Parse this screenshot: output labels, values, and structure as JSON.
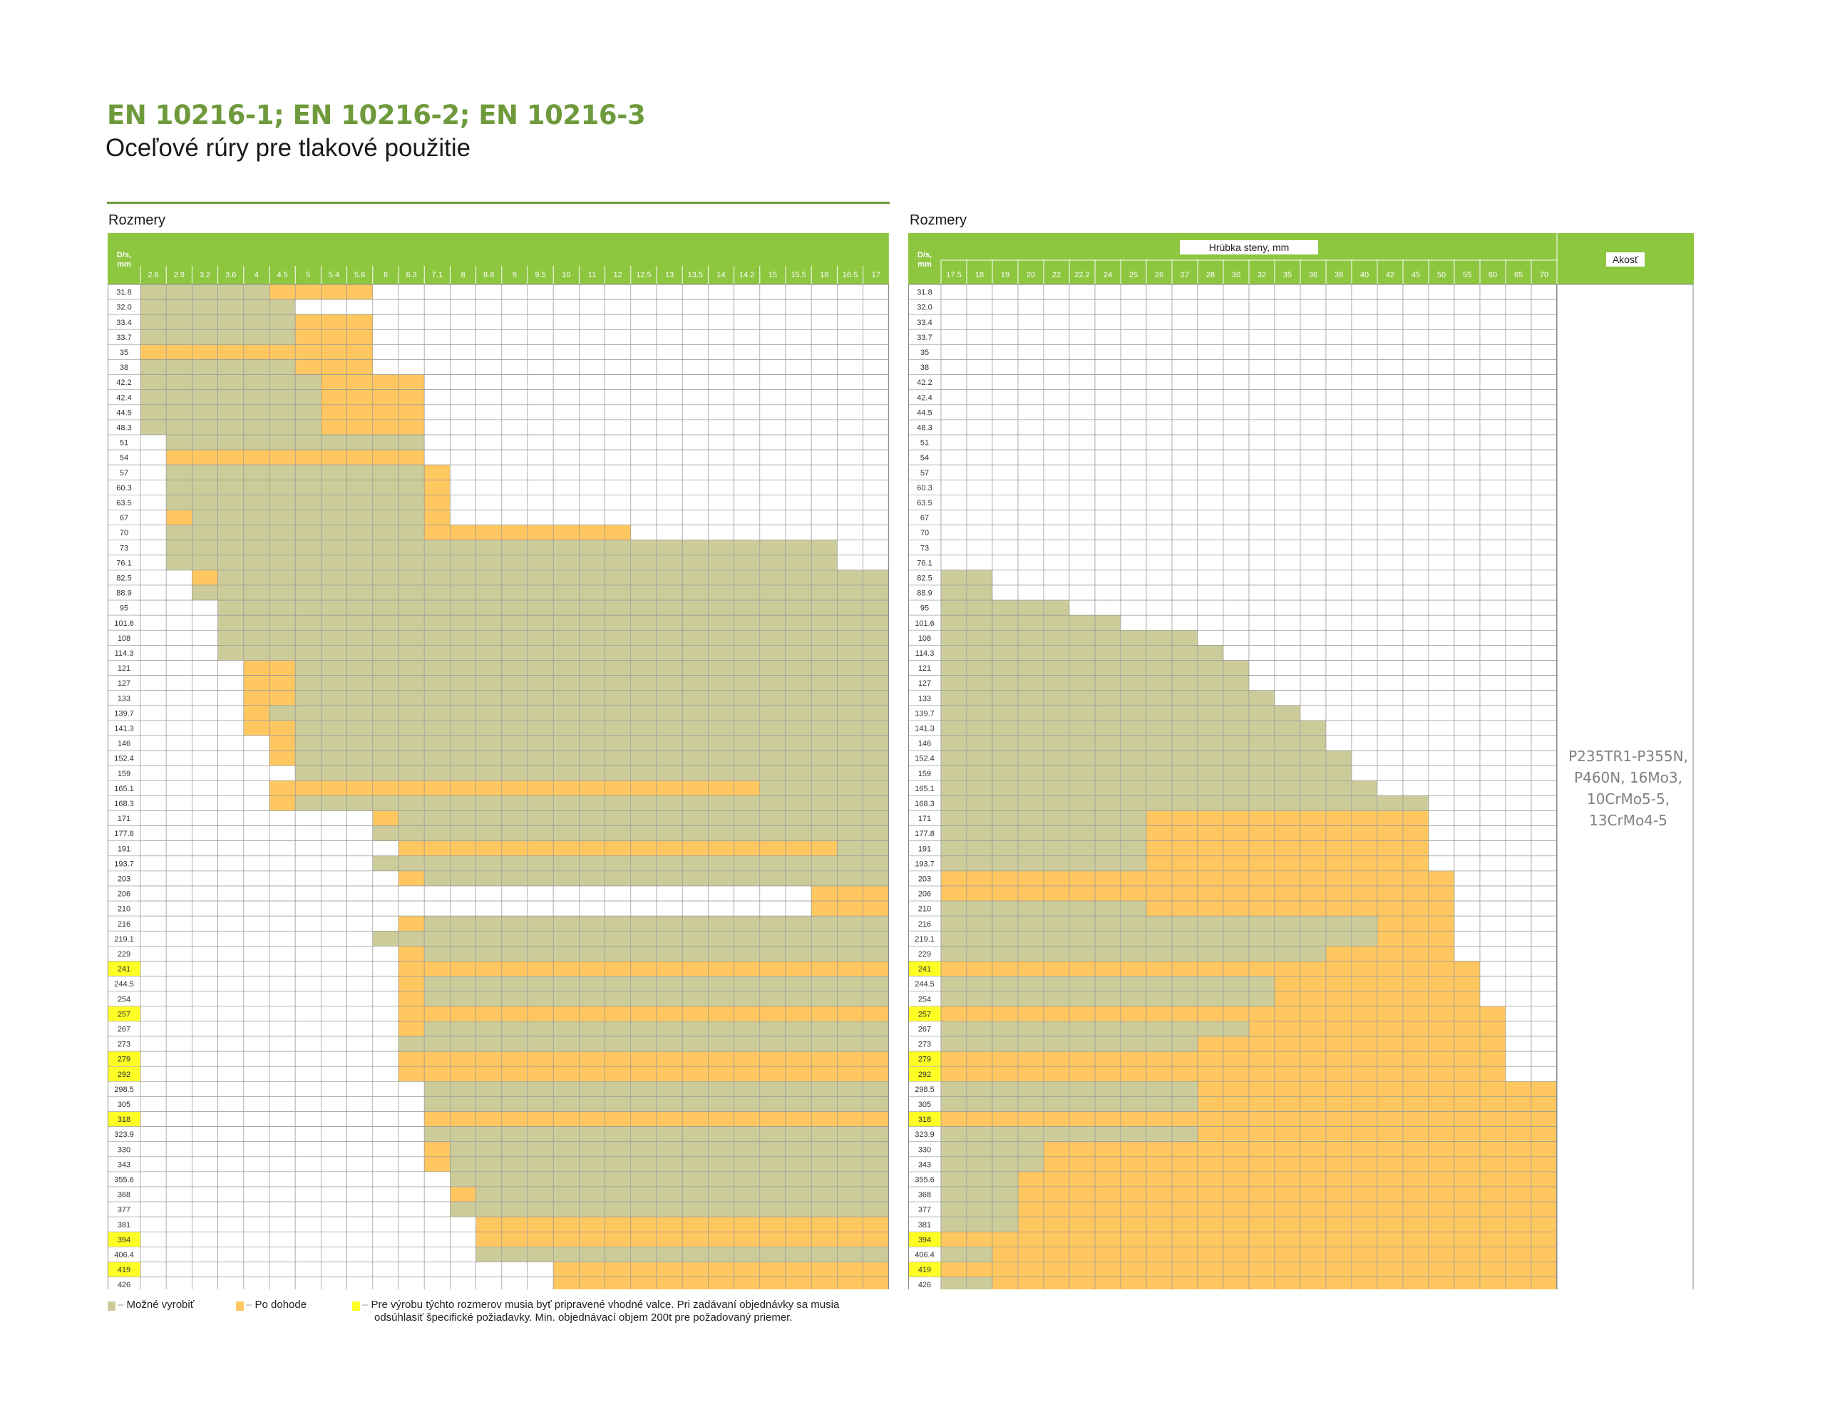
{
  "header": {
    "standard": "EN 10216-1; EN 10216-2; EN 10216-3",
    "subtitle": "Oceľové rúry pre tlakové použitie"
  },
  "left_table": {
    "label": "Rozmery",
    "corner_label": "D/s, mm",
    "thicknesses": [
      "2.6",
      "2.9",
      "3.2",
      "3.6",
      "4",
      "4.5",
      "5",
      "5.4",
      "5.6",
      "6",
      "6.3",
      "7.1",
      "8",
      "8.8",
      "9",
      "9.5",
      "10",
      "11",
      "12",
      "12.5",
      "13",
      "13.5",
      "14",
      "14.2",
      "15",
      "15.5",
      "16",
      "16.5",
      "17"
    ]
  },
  "right_table": {
    "label": "Rozmery",
    "corner_label": "D/s, mm",
    "wall_header": "Hrúbka steny, mm",
    "grade_header": "Akosť",
    "grades": [
      "P235TR1-P355N,",
      "P460N,  16Mo3,",
      "10CrMo5-5,",
      "13CrMo4-5"
    ],
    "thicknesses": [
      "17.5",
      "18",
      "19",
      "20",
      "22",
      "22.2",
      "24",
      "25",
      "26",
      "27",
      "28",
      "30",
      "32",
      "35",
      "36",
      "38",
      "40",
      "42",
      "45",
      "50",
      "55",
      "60",
      "65",
      "70"
    ]
  },
  "diameters": [
    "31.8",
    "32.0",
    "33.4",
    "33.7",
    "35",
    "38",
    "42.2",
    "42.4",
    "44.5",
    "48.3",
    "51",
    "54",
    "57",
    "60.3",
    "63.5",
    "67",
    "70",
    "73",
    "76.1",
    "82.5",
    "88.9",
    "95",
    "101.6",
    "108",
    "114.3",
    "121",
    "127",
    "133",
    "139.7",
    "141.3",
    "146",
    "152.4",
    "159",
    "165.1",
    "168.3",
    "171",
    "177.8",
    "191",
    "193.7",
    "203",
    "206",
    "210",
    "216",
    "219.1",
    "229",
    "241",
    "244.5",
    "254",
    "257",
    "267",
    "273",
    "279",
    "292",
    "298.5",
    "305",
    "318",
    "323.9",
    "330",
    "343",
    "355.6",
    "368",
    "377",
    "381",
    "394",
    "406.4",
    "419",
    "426"
  ],
  "highlighted_diameters": [
    "241",
    "257",
    "279",
    "292",
    "318",
    "394",
    "419"
  ],
  "legend": {
    "possible": "Možné vyrobiť",
    "agreement": "Po dohode",
    "note_line1": "Pre výrobu týchto rozmerov musia byť pripravené vhodné valce. Pri zadávaní objednávky sa musia",
    "note_line2": "odsúhlasiť špecifické požiadavky. Min. objednávací objem 200t pre požadovaný priemer."
  },
  "colors": {
    "header_green": "#8dc63f",
    "possible": "#cccc9a",
    "agreement": "#ffc75f",
    "highlight": "#ffff26",
    "title_green": "#6f9a3c"
  },
  "cell_codes": {
    "legend": "G = možné vyrobiť, O = po dohode, . = prázdne",
    "left": [
      "GGGGGOOOO....................",
      "GGGGGG.......................",
      "GGGGGGOOO....................",
      "GGGGGGOOO....................",
      "OOOOOOOOO....................",
      "GGGGGGOOO....................",
      "GGGGGGGOOOO..................",
      "GGGGGGGOOOO..................",
      "GGGGGGGOOOO..................",
      "GGGGGGGOOOO..................",
      ".GGGGGGGGGG..................",
      ".OOOOOOOOOO..................",
      ".GGGGGGGGGGO.................",
      ".GGGGGGGGGGO.................",
      ".GGGGGGGGGGO.................",
      ".OGGGGGGGGGO.................",
      ".GGGGGGGGGGOOOOOOOO..........",
      ".GGGGGGGGGGGGGGGGGGGGGGGGGG..",
      ".GGGGGGGGGGGGGGGGGGGGGGGGGG..",
      "..OGGGGGGGGGGGGGGGGGGGGGGGGGG",
      "..GGGGGGGGGGGGGGGGGGGGGGGGGGG",
      "...GGGGGGGGGGGGGGGGGGGGGGGGGG",
      "...GGGGGGGGGGGGGGGGGGGGGGGGGG",
      "...GGGGGGGGGGGGGGGGGGGGGGGGGG",
      "...GGGGGGGGGGGGGGGGGGGGGGGGGG",
      "....OOGGGGGGGGGGGGGGGGGGGGGGG",
      "....OOGGGGGGGGGGGGGGGGGGGGGGG",
      "....OOGGGGGGGGGGGGGGGGGGGGGGG",
      "....OGGGGGGGGGGGGGGGGGGGGGGGG",
      "....OOGGGGGGGGGGGGGGGGGGGGGGG",
      ".....OGGGGGGGGGGGGGGGGGGGGGGG",
      ".....OGGGGGGGGGGGGGGGGGGGGGGG",
      "......GGGGGGGGGGGGGGGGGGGGGGG",
      ".....OOOOOOOOOOOOOOOOOOOGGGGG",
      ".....OGGGGGGGGGGGGGGGGGGGGGGG",
      ".........OGGGGGGGGGGGGGGGGGGG",
      ".........GGGGGGGGGGGGGGGGGGGG",
      "..........OOOOOOOOOOOOOOOOOGG",
      ".........GGGGGGGGGGGGGGGGGGGG",
      "..........OGGGGGGGGGGGGGGGGGG",
      "..........................OOO",
      "..........................OOO",
      "..........OGGGGGGGGGGGGGGGGGG",
      ".........GGGGGGGGGGGGGGGGGGGG",
      "..........OGGGGGGGGGGGGGGGGGG",
      "..........OOOOOOOOOOOOOOOOOOO",
      "..........OGGGGGGGGGGGGGGGGGG",
      "..........OGGGGGGGGGGGGGGGGGG",
      "..........OOOOOOOOOOOOOOOOOOO",
      "..........OGGGGGGGGGGGGGGGGGG",
      "..........GGGGGGGGGGGGGGGGGGG",
      "..........OOOOOOOOOOOOOOOOOOO",
      "..........OOOOOOOOOOOOOOOOOOO",
      "...........GGGGGGGGGGGGGGGGGG",
      "...........GGGGGGGGGGGGGGGGGG",
      "...........OOOOOOOOOOOOOOOOOO",
      "...........GGGGGGGGGGGGGGGGGG",
      "...........OGGGGGGGGGGGGGGGGG",
      "...........OGGGGGGGGGGGGGGGGG",
      "............GGGGGGGGGGGGGGGGG",
      "............OGGGGGGGGGGGGGGGG",
      "............GGGGGGGGGGGGGGGGG",
      ".............OOOOOOOOOOOOOOOO",
      ".............OOOOOOOOOOOOOOOO",
      ".............GGGGGGGGGGGGGGGG",
      "................OOOOOOOOOOOOO",
      "................OOOOOOOOOOOOO"
    ],
    "right": [
      "........................",
      "........................",
      "........................",
      "........................",
      "........................",
      "........................",
      "........................",
      "........................",
      "........................",
      "........................",
      "........................",
      "........................",
      "........................",
      "........................",
      "........................",
      "........................",
      "........................",
      "........................",
      "........................",
      "GG......................",
      "GG......................",
      "GGGGG...................",
      "GGGGGGG.................",
      "GGGGGGGGGG..............",
      "GGGGGGGGGGG.............",
      "GGGGGGGGGGGG............",
      "GGGGGGGGGGGG............",
      "GGGGGGGGGGGGG...........",
      "GGGGGGGGGGGGGG..........",
      "GGGGGGGGGGGGGGG.........",
      "GGGGGGGGGGGGGGG.........",
      "GGGGGGGGGGGGGGGG........",
      "GGGGGGGGGGGGGGGG........",
      "GGGGGGGGGGGGGGGGG.......",
      "GGGGGGGGGGGGGGGGGGG.....",
      "GGGGGGGGOOOOOOOOOOO.....",
      "GGGGGGGGOOOOOOOOOOO.....",
      "GGGGGGGGOOOOOOOOOOO.....",
      "GGGGGGGGOOOOOOOOOOO.....",
      "OOOOOOOOOOOOOOOOOOOO....",
      "OOOOOOOOOOOOOOOOOOOO....",
      "GGGGGGGGOOOOOOOOOOOO....",
      "GGGGGGGGGGGGGGGGGOOO....",
      "GGGGGGGGGGGGGGGGGOOO....",
      "GGGGGGGGGGGGGGGOOOOO....",
      "OOOOOOOOOOOOOOOOOOOOO...",
      "GGGGGGGGGGGGGOOOOOOOO...",
      "GGGGGGGGGGGGGOOOOOOOO...",
      "OOOOOOOOOOOOOOOOOOOOOO..",
      "GGGGGGGGGGGGOOOOOOOOOO..",
      "GGGGGGGGGGOOOOOOOOOOOO..",
      "OOOOOOOOOOOOOOOOOOOOOO..",
      "OOOOOOOOOOOOOOOOOOOOOO..",
      "GGGGGGGGGGOOOOOOOOOOOOOO",
      "GGGGGGGGGGOOOOOOOOOOOOOO",
      "OOOOOOOOOOOOOOOOOOOOOOOO",
      "GGGGGGGGGGOOOOOOOOOOOOOO",
      "GGGGOOOOOOOOOOOOOOOOOOOO",
      "GGGGOOOOOOOOOOOOOOOOOOOO",
      "GGGOOOOOOOOOOOOOOOOOOOOO",
      "GGGOOOOOOOOOOOOOOOOOOOOO",
      "GGGOOOOOOOOOOOOOOOOOOOOO",
      "GGGOOOOOOOOOOOOOOOOOOOOO",
      "OOOOOOOOOOOOOOOOOOOOOOOO",
      "GGOOOOOOOOOOOOOOOOOOOOOO",
      "OOOOOOOOOOOOOOOOOOOOOOOO",
      "GGOOOOOOOOOOOOOOOOOOOOOO"
    ]
  }
}
